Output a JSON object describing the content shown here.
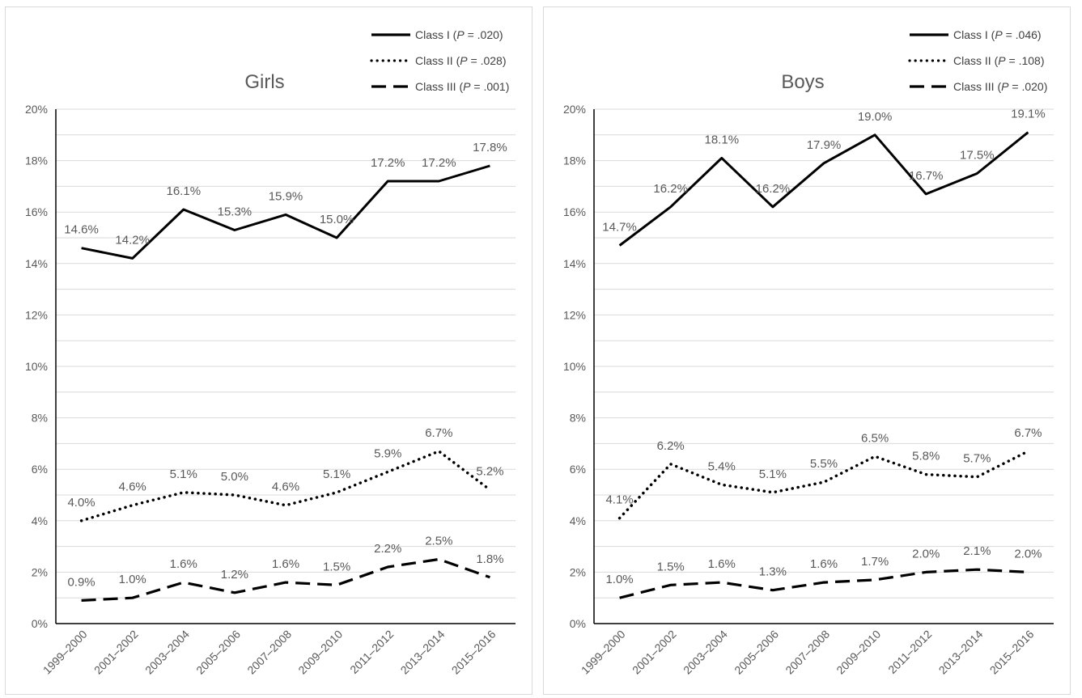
{
  "chart_data": [
    {
      "type": "line",
      "title": "Girls",
      "xlabel": "",
      "ylabel": "",
      "categories": [
        "1999–2000",
        "2001–2002",
        "2003–2004",
        "2005–2006",
        "2007–2008",
        "2009–2010",
        "2011–2012",
        "2013–2014",
        "2015–2016"
      ],
      "ylim": [
        0,
        20
      ],
      "yticks": [
        "0%",
        "2%",
        "4%",
        "6%",
        "8%",
        "10%",
        "12%",
        "14%",
        "16%",
        "18%",
        "20%"
      ],
      "grid": true,
      "legend_position": "top-right",
      "series": [
        {
          "name": "Class I",
          "p_value": ".020",
          "style": "solid",
          "color": "#000000",
          "values": [
            14.6,
            14.2,
            16.1,
            15.3,
            15.9,
            15.0,
            17.2,
            17.2,
            17.8
          ],
          "labels": [
            "14.6%",
            "14.2%",
            "16.1%",
            "15.3%",
            "15.9%",
            "15.0%",
            "17.2%",
            "17.2%",
            "17.8%"
          ]
        },
        {
          "name": "Class II",
          "p_value": ".028",
          "style": "dotted",
          "color": "#000000",
          "values": [
            4.0,
            4.6,
            5.1,
            5.0,
            4.6,
            5.1,
            5.9,
            6.7,
            5.2
          ],
          "labels": [
            "4.0%",
            "4.6%",
            "5.1%",
            "5.0%",
            "4.6%",
            "5.1%",
            "5.9%",
            "6.7%",
            "5.2%"
          ]
        },
        {
          "name": "Class III",
          "p_value": ".001",
          "style": "dashed",
          "color": "#000000",
          "values": [
            0.9,
            1.0,
            1.6,
            1.2,
            1.6,
            1.5,
            2.2,
            2.5,
            1.8
          ],
          "labels": [
            "0.9%",
            "1.0%",
            "1.6%",
            "1.2%",
            "1.6%",
            "1.5%",
            "2.2%",
            "2.5%",
            "1.8%"
          ]
        }
      ]
    },
    {
      "type": "line",
      "title": "Boys",
      "xlabel": "",
      "ylabel": "",
      "categories": [
        "1999–2000",
        "2001–2002",
        "2003–2004",
        "2005–2006",
        "2007–2008",
        "2009–2010",
        "2011–2012",
        "2013–2014",
        "2015–2016"
      ],
      "ylim": [
        0,
        20
      ],
      "yticks": [
        "0%",
        "2%",
        "4%",
        "6%",
        "8%",
        "10%",
        "12%",
        "14%",
        "16%",
        "18%",
        "20%"
      ],
      "grid": true,
      "legend_position": "top-right",
      "series": [
        {
          "name": "Class I",
          "p_value": ".046",
          "style": "solid",
          "color": "#000000",
          "values": [
            14.7,
            16.2,
            18.1,
            16.2,
            17.9,
            19.0,
            16.7,
            17.5,
            19.1
          ],
          "labels": [
            "14.7%",
            "16.2%",
            "18.1%",
            "16.2%",
            "17.9%",
            "19.0%",
            "16.7%",
            "17.5%",
            "19.1%"
          ]
        },
        {
          "name": "Class II",
          "p_value": ".108",
          "style": "dotted",
          "color": "#000000",
          "values": [
            4.1,
            6.2,
            5.4,
            5.1,
            5.5,
            6.5,
            5.8,
            5.7,
            6.7
          ],
          "labels": [
            "4.1%",
            "6.2%",
            "5.4%",
            "5.1%",
            "5.5%",
            "6.5%",
            "5.8%",
            "5.7%",
            "6.7%"
          ]
        },
        {
          "name": "Class III",
          "p_value": ".020",
          "style": "dashed",
          "color": "#000000",
          "values": [
            1.0,
            1.5,
            1.6,
            1.3,
            1.6,
            1.7,
            2.0,
            2.1,
            2.0
          ],
          "labels": [
            "1.0%",
            "1.5%",
            "1.6%",
            "1.3%",
            "1.6%",
            "1.7%",
            "2.0%",
            "2.1%",
            "2.0%"
          ]
        }
      ]
    }
  ],
  "legend_p_symbol": "P",
  "colors": {
    "gridline": "#d9d9d9",
    "axis": "#000000",
    "text": "#595959",
    "panel_border": "#d9d9d9"
  }
}
